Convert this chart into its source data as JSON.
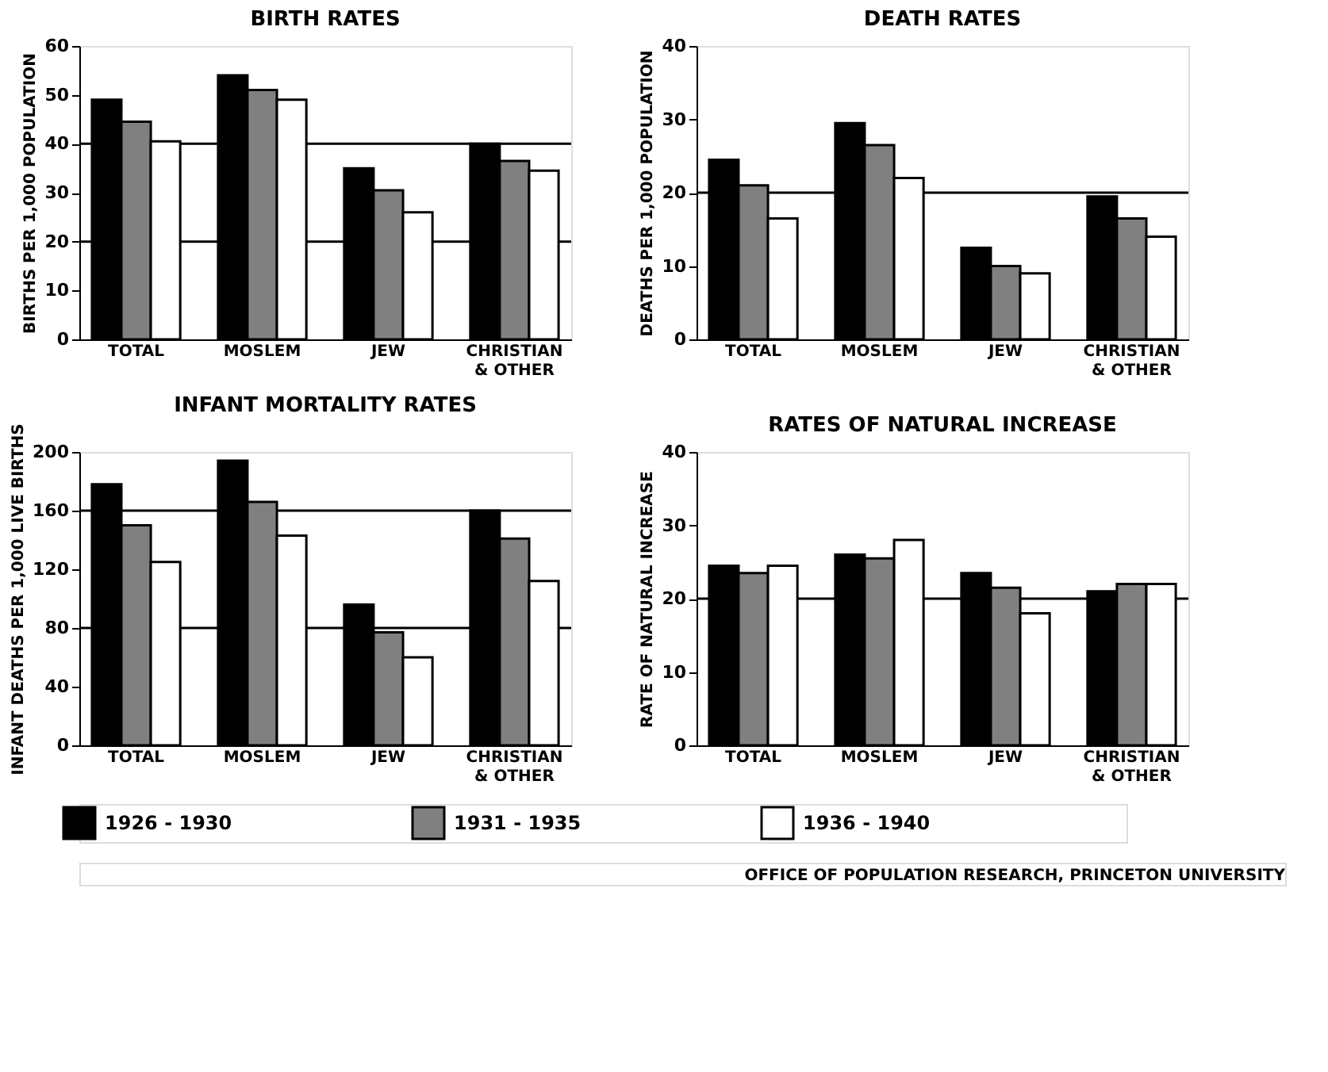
{
  "chart_data": [
    {
      "type": "bar",
      "title": "BIRTH RATES",
      "ylabel": "BIRTHS PER 1,000 POPULATION",
      "categories": [
        "TOTAL",
        "MOSLEM",
        "JEW",
        "CHRISTIAN & OTHER"
      ],
      "series": [
        {
          "name": "1926 - 1930",
          "color": "#000000",
          "values": [
            49,
            54,
            35,
            40
          ]
        },
        {
          "name": "1931 - 1935",
          "color": "#808080",
          "values": [
            44.5,
            51,
            30.5,
            36.5
          ]
        },
        {
          "name": "1936 - 1940",
          "color": "#ffffff",
          "values": [
            40.5,
            49,
            26,
            34.5
          ]
        }
      ],
      "ylim": [
        0,
        60
      ],
      "yticks": [
        0,
        10,
        20,
        30,
        40,
        50,
        60
      ],
      "ref_lines": [
        {
          "axis": "y",
          "value": 20
        },
        {
          "axis": "y",
          "value": 40
        }
      ],
      "legend": "bottom"
    },
    {
      "type": "bar",
      "title": "DEATH RATES",
      "ylabel": "DEATHS PER 1,000 POPULATION",
      "categories": [
        "TOTAL",
        "MOSLEM",
        "JEW",
        "CHRISTIAN & OTHER"
      ],
      "series": [
        {
          "name": "1926 - 1930",
          "color": "#000000",
          "values": [
            24.5,
            29.5,
            12.5,
            19.5
          ]
        },
        {
          "name": "1931 - 1935",
          "color": "#808080",
          "values": [
            21,
            26.5,
            10,
            16.5
          ]
        },
        {
          "name": "1936 - 1940",
          "color": "#ffffff",
          "values": [
            16.5,
            22,
            9,
            14
          ]
        }
      ],
      "ylim": [
        0,
        40
      ],
      "yticks": [
        0,
        10,
        20,
        30,
        40
      ],
      "ref_lines": [
        {
          "axis": "y",
          "value": 20
        }
      ],
      "legend": "bottom"
    },
    {
      "type": "bar",
      "title": "INFANT MORTALITY RATES",
      "ylabel": "INFANT DEATHS PER 1,000 LIVE BIRTHS",
      "categories": [
        "TOTAL",
        "MOSLEM",
        "JEW",
        "CHRISTIAN & OTHER"
      ],
      "series": [
        {
          "name": "1926 - 1930",
          "color": "#000000",
          "values": [
            178,
            194,
            96,
            160
          ]
        },
        {
          "name": "1931 - 1935",
          "color": "#808080",
          "values": [
            150,
            166,
            77,
            141
          ]
        },
        {
          "name": "1936 - 1940",
          "color": "#ffffff",
          "values": [
            125,
            143,
            60,
            112
          ]
        }
      ],
      "ylim": [
        0,
        200
      ],
      "yticks": [
        0,
        40,
        80,
        120,
        160,
        200
      ],
      "ref_lines": [
        {
          "axis": "y",
          "value": 80
        },
        {
          "axis": "y",
          "value": 160
        }
      ],
      "legend": "bottom"
    },
    {
      "type": "bar",
      "title": "RATES OF NATURAL INCREASE",
      "ylabel": "RATE OF NATURAL INCREASE",
      "categories": [
        "TOTAL",
        "MOSLEM",
        "JEW",
        "CHRISTIAN & OTHER"
      ],
      "series": [
        {
          "name": "1926 - 1930",
          "color": "#000000",
          "values": [
            24.5,
            26,
            23.5,
            21
          ]
        },
        {
          "name": "1931 - 1935",
          "color": "#808080",
          "values": [
            23.5,
            25.5,
            21.5,
            22
          ]
        },
        {
          "name": "1936 - 1940",
          "color": "#ffffff",
          "values": [
            24.5,
            28,
            18,
            22
          ]
        }
      ],
      "ylim": [
        0,
        40
      ],
      "yticks": [
        0,
        10,
        20,
        30,
        40
      ],
      "ref_lines": [
        {
          "axis": "y",
          "value": 20
        }
      ],
      "legend": "bottom",
      "annotations": [
        "OFFICE OF POPULATION RESEARCH, PRINCETON UNIVERSITY"
      ]
    }
  ]
}
